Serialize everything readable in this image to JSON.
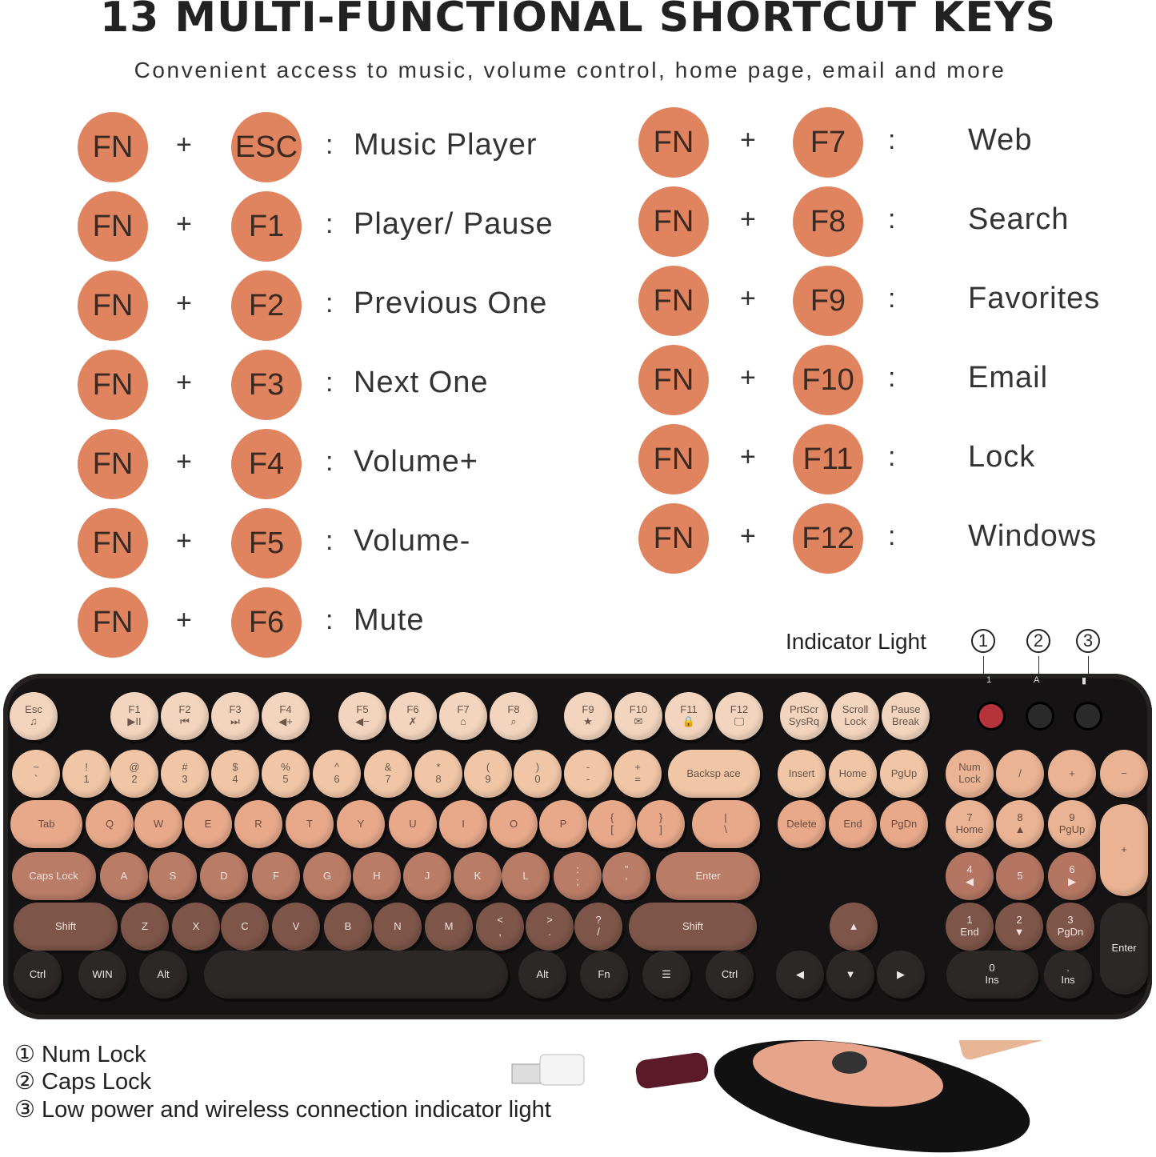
{
  "header": {
    "title": "13 MULTI-FUNCTIONAL SHORTCUT KEYS",
    "subtitle": "Convenient access to music, volume control, home page, email and more"
  },
  "colors": {
    "key_circle": "#e0835f",
    "keyboard_body": "#151313"
  },
  "shortcuts_left": [
    {
      "mod": "FN",
      "plus": "+",
      "key": "ESC",
      "colon": ":",
      "action": "Music Player"
    },
    {
      "mod": "FN",
      "plus": "+",
      "key": "F1",
      "colon": ":",
      "action": "Player/ Pause"
    },
    {
      "mod": "FN",
      "plus": "+",
      "key": "F2",
      "colon": ":",
      "action": "Previous One"
    },
    {
      "mod": "FN",
      "plus": "+",
      "key": "F3",
      "colon": ":",
      "action": "Next One"
    },
    {
      "mod": "FN",
      "plus": "+",
      "key": "F4",
      "colon": ":",
      "action": "Volume+"
    },
    {
      "mod": "FN",
      "plus": "+",
      "key": "F5",
      "colon": ":",
      "action": "Volume-"
    },
    {
      "mod": "FN",
      "plus": "+",
      "key": "F6",
      "colon": ":",
      "action": "Mute"
    }
  ],
  "shortcuts_right": [
    {
      "mod": "FN",
      "plus": "+",
      "key": "F7",
      "colon": ":",
      "action": "Web"
    },
    {
      "mod": "FN",
      "plus": "+",
      "key": "F8",
      "colon": ":",
      "action": "Search"
    },
    {
      "mod": "FN",
      "plus": "+",
      "key": "F9",
      "colon": ":",
      "action": "Favorites"
    },
    {
      "mod": "FN",
      "plus": "+",
      "key": "F10",
      "colon": ":",
      "action": "Email"
    },
    {
      "mod": "FN",
      "plus": "+",
      "key": "F11",
      "colon": ":",
      "action": "Lock"
    },
    {
      "mod": "FN",
      "plus": "+",
      "key": "F12",
      "colon": ":",
      "action": "Windows"
    }
  ],
  "indicator": {
    "label": "Indicator Light",
    "numbers": [
      "1",
      "2",
      "3"
    ],
    "led_labels": [
      "1",
      "A",
      "▮"
    ]
  },
  "keyboard": {
    "rows": [
      [
        "Esc\n♫",
        "F1\n▶II",
        "F2\n⏮",
        "F3\n⏭",
        "F4\n◀+",
        "F5\n◀−",
        "F6\n✗",
        "F7\n⌂",
        "F8\n⌕",
        "F9\n★",
        "F10\n✉",
        "F11\n🔒",
        "F12\n🖵",
        "PrtScr\nSysRq",
        "Scroll\nLock",
        "Pause\nBreak"
      ],
      [
        "~\n`",
        "!\n1",
        "@\n2",
        "#\n3",
        "$\n4",
        "%\n5",
        "^\n6",
        "&\n7",
        "*\n8",
        "(\n9",
        ")\n0",
        "-\n-",
        "+\n=",
        "Backsp ace",
        "Insert",
        "Home",
        "PgUp",
        "Num\nLock",
        "/",
        "+",
        "−"
      ],
      [
        "Tab",
        "Q",
        "W",
        "E",
        "R",
        "T",
        "Y",
        "U",
        "I",
        "O",
        "P",
        "{\n[",
        "}\n]",
        "|\n\\",
        "Delete",
        "End",
        "PgDn",
        "7\nHome",
        "8\n▲",
        "9\nPgUp",
        "+"
      ],
      [
        "Caps Lock",
        "A",
        "S",
        "D",
        "F",
        "G",
        "H",
        "J",
        "K",
        "L",
        ":\n;",
        "\"\n'",
        "Enter",
        "4\n◀",
        "5",
        "6\n▶"
      ],
      [
        "Shift",
        "Z",
        "X",
        "C",
        "V",
        "B",
        "N",
        "M",
        "<\n,",
        ">\n.",
        "?\n/",
        "Shift",
        "▲",
        "1\nEnd",
        "2\n▼",
        "3\nPgDn",
        "Enter"
      ],
      [
        "Ctrl",
        "WIN",
        "Alt",
        "",
        "Alt",
        "Fn",
        "☰",
        "Ctrl",
        "◀",
        "▼",
        "▶",
        "0\nIns",
        ".\nIns"
      ]
    ]
  },
  "legend": [
    "① Num Lock",
    "② Caps Lock",
    "③ Low power and wireless connection indicator light"
  ]
}
